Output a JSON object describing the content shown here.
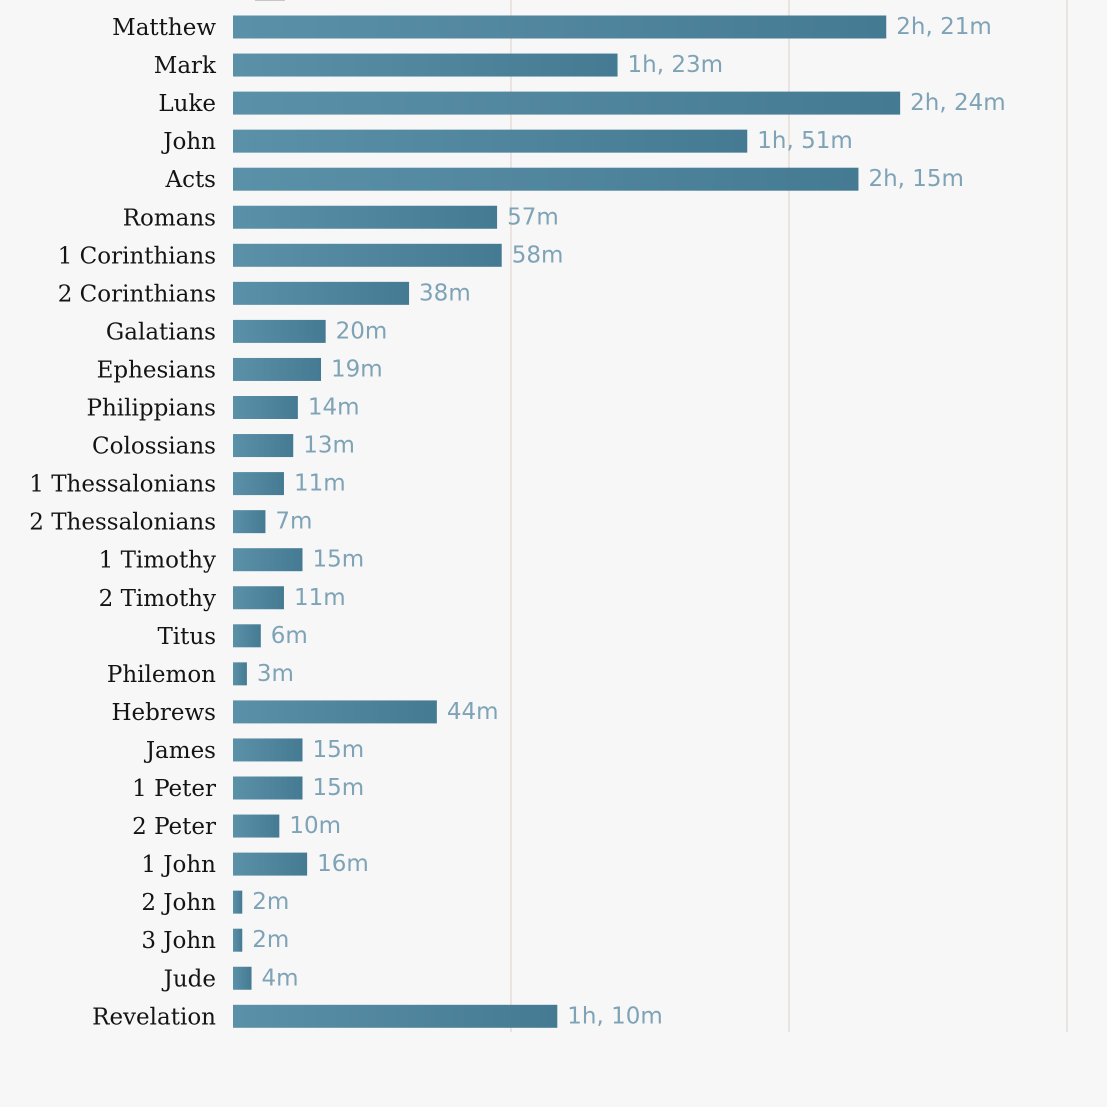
{
  "chart_data": {
    "type": "bar",
    "orientation": "horizontal",
    "unit": "minutes",
    "categories": [
      "Matthew",
      "Mark",
      "Luke",
      "John",
      "Acts",
      "Romans",
      "1 Corinthians",
      "2 Corinthians",
      "Galatians",
      "Ephesians",
      "Philippians",
      "Colossians",
      "1 Thessalonians",
      "2 Thessalonians",
      "1 Timothy",
      "2 Timothy",
      "Titus",
      "Philemon",
      "Hebrews",
      "James",
      "1 Peter",
      "2 Peter",
      "1 John",
      "2 John",
      "3 John",
      "Jude",
      "Revelation"
    ],
    "values": [
      141,
      83,
      144,
      111,
      135,
      57,
      58,
      38,
      20,
      19,
      14,
      13,
      11,
      7,
      15,
      11,
      6,
      3,
      44,
      15,
      15,
      10,
      16,
      2,
      2,
      4,
      70
    ],
    "value_labels": [
      "2h, 21m",
      "1h, 23m",
      "2h, 24m",
      "1h, 51m",
      "2h, 15m",
      "57m",
      "58m",
      "38m",
      "20m",
      "19m",
      "14m",
      "13m",
      "11m",
      "7m",
      "15m",
      "11m",
      "6m",
      "3m",
      "44m",
      "15m",
      "15m",
      "10m",
      "16m",
      "2m",
      "2m",
      "4m",
      "1h, 10m"
    ],
    "xlim": [
      0,
      180
    ],
    "grid_x": [
      60,
      120,
      180
    ],
    "grid": true,
    "legend": "none",
    "title": "",
    "xlabel": "",
    "ylabel": "",
    "colors": {
      "bar_start": "#5b91a8",
      "bar_end": "#457a93",
      "value_label": "#7fa3b6",
      "category_label": "#141414",
      "gridline": "#e6dcd6",
      "background": "#f7f7f8"
    }
  }
}
